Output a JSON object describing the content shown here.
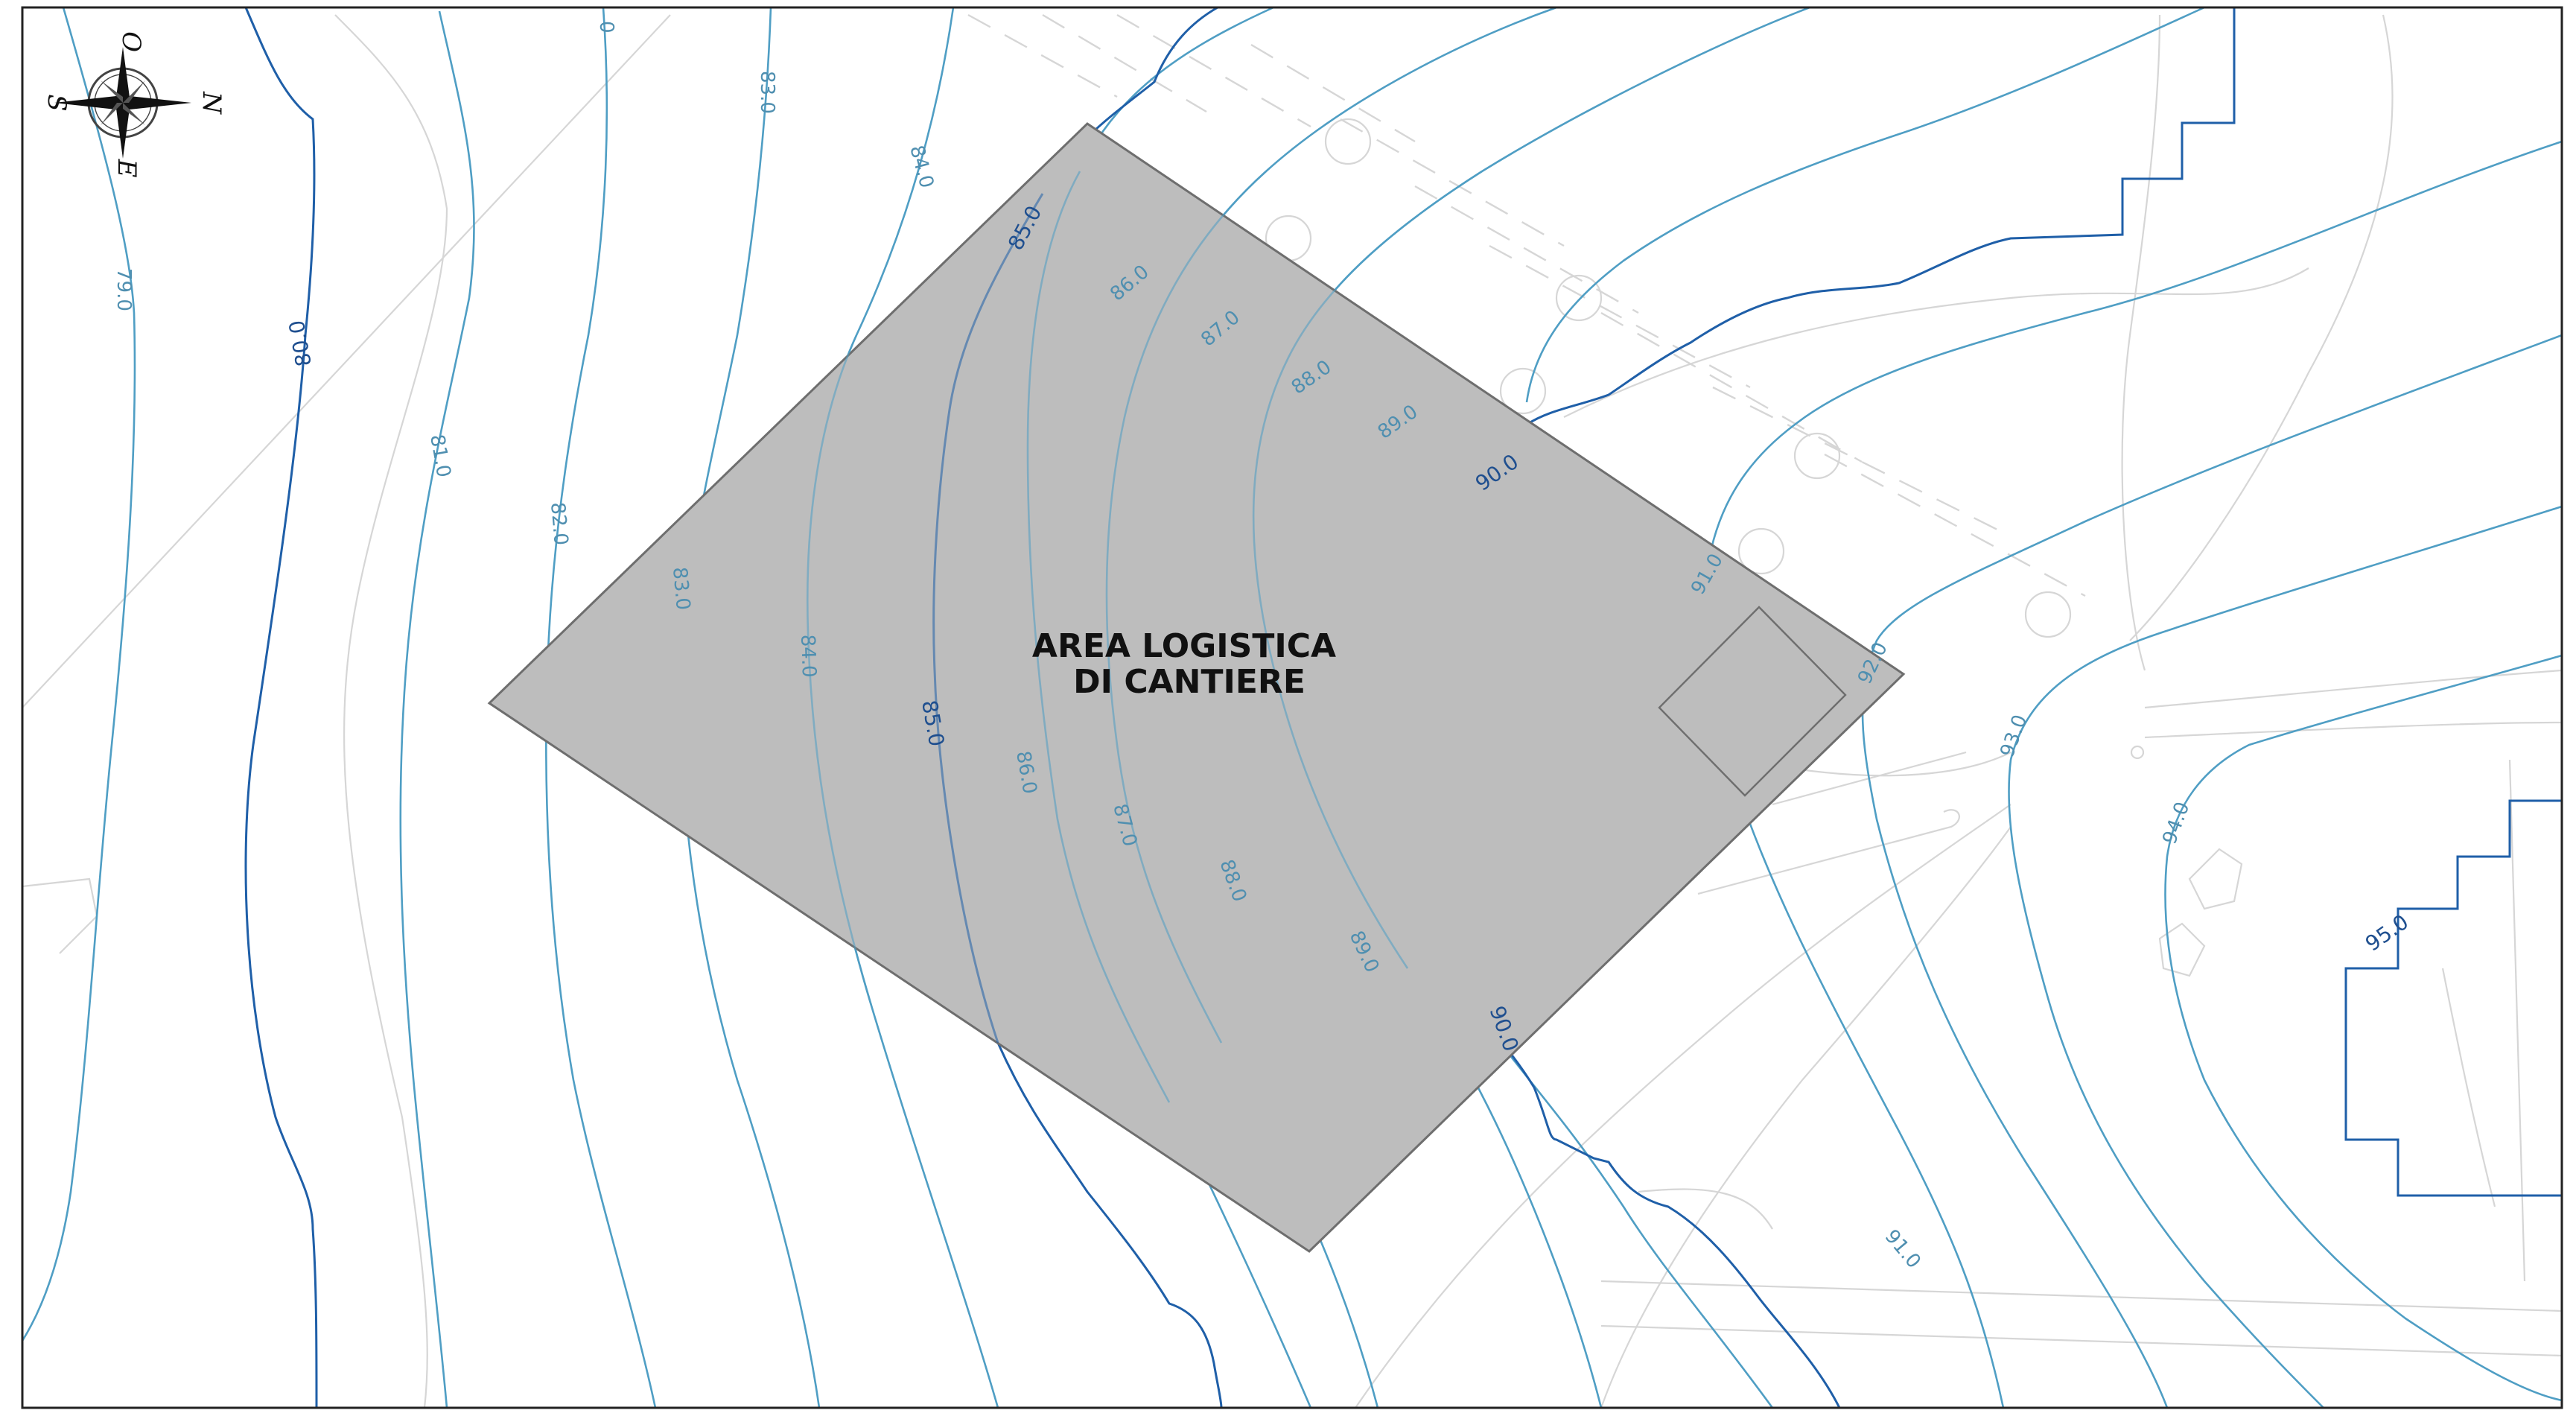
{
  "area": {
    "title_line1": "AREA LOGISTICA",
    "title_line2": "DI CANTIERE",
    "fill_color": "#bdbdbd"
  },
  "compass": {
    "north": "N",
    "south": "S",
    "east": "E",
    "west": "O"
  },
  "contour_labels": {
    "c79a": "79.0",
    "c80a": "80.0",
    "c81a": "81.0",
    "c82a": "82.0",
    "c83a": "83.0",
    "c83b": "83.0",
    "c84a": "84.0",
    "c84b": "84.0",
    "c85a": "85.0",
    "c85b": "85.0",
    "c86a": "86.0",
    "c86b": "86.0",
    "c87a": "87.0",
    "c87b": "87.0",
    "c88a": "88.0",
    "c88b": "88.0",
    "c89a": "89.0",
    "c89b": "89.0",
    "c90a": "90.0",
    "c90b": "90.0",
    "c91a": "91.0",
    "c91b": "91.0",
    "c92a": "92.0",
    "c93a": "93.0",
    "c94a": "94.0",
    "c95a": "95.0",
    "ctop": "0"
  },
  "colors": {
    "contour_minor": "#4f9ec4",
    "contour_major": "#1f5fa8",
    "background_lines": "#d6d6d6"
  }
}
